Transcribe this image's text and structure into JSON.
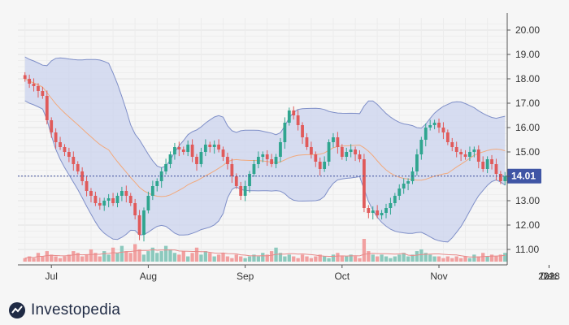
{
  "brand": {
    "name": "Investopedia"
  },
  "colors": {
    "up": "#2fa58f",
    "down": "#e05a5a",
    "band_fill": "#c9d2ee",
    "band_line": "#7f8fc8",
    "mid_line": "#f2a97c",
    "last_price_line": "#3e4f9c",
    "last_price_tag": "#3f55a5",
    "volume_up": "#8cc9bd",
    "volume_down": "#f1a0a0",
    "volume_ma": "#e88a8a"
  },
  "chart_data": {
    "type": "candlestick",
    "title": "",
    "indicators": [
      "bollinger-bands",
      "volume"
    ],
    "y_axis": {
      "position": "right",
      "range": [
        10.5,
        20.5
      ],
      "ticks": [
        "11.00",
        "12.00",
        "13.00",
        "14.00",
        "15.00",
        "16.00",
        "17.00",
        "18.00",
        "19.00",
        "20.00"
      ]
    },
    "x_axis": {
      "ticks": [
        {
          "label": "Jul",
          "index": 6
        },
        {
          "label": "Aug",
          "index": 28
        },
        {
          "label": "Sep",
          "index": 50
        },
        {
          "label": "Oct",
          "index": 72
        },
        {
          "label": "Nov",
          "index": 94
        },
        {
          "label": "Dec",
          "index": 116
        },
        {
          "label": "2018",
          "index": 138
        },
        {
          "label": "22",
          "index": 152
        }
      ]
    },
    "last_price": 14.01,
    "last_price_label": "14.01",
    "grid": true,
    "closes": [
      18.0,
      17.8,
      17.7,
      17.5,
      17.3,
      16.3,
      15.8,
      15.4,
      15.2,
      15.0,
      14.8,
      14.5,
      14.2,
      13.8,
      13.4,
      13.2,
      12.9,
      12.8,
      13.0,
      13.1,
      12.9,
      13.2,
      13.4,
      13.2,
      12.9,
      12.4,
      11.6,
      12.6,
      13.2,
      13.6,
      13.8,
      14.2,
      14.5,
      14.9,
      15.2,
      15.1,
      15.0,
      15.3,
      14.8,
      14.5,
      15.0,
      15.3,
      15.2,
      15.3,
      15.1,
      14.8,
      14.5,
      14.0,
      13.6,
      13.2,
      13.6,
      14.1,
      14.5,
      14.8,
      14.9,
      14.7,
      14.5,
      14.8,
      15.4,
      16.2,
      16.7,
      16.5,
      16.1,
      15.6,
      15.2,
      14.9,
      14.6,
      14.3,
      14.6,
      15.4,
      15.6,
      15.2,
      14.8,
      15.0,
      15.1,
      14.9,
      14.7,
      12.7,
      12.5,
      12.6,
      12.4,
      12.5,
      12.7,
      12.9,
      13.2,
      13.5,
      13.7,
      13.8,
      14.2,
      14.9,
      15.5,
      16.0,
      16.1,
      16.2,
      16.0,
      15.8,
      15.4,
      15.2,
      15.0,
      14.9,
      14.8,
      15.0,
      15.1,
      14.6,
      14.3,
      14.7,
      14.5,
      14.1,
      13.8,
      14.01
    ],
    "volume_scale": "relative (no volume axis printed)",
    "volumes": [
      0.2,
      0.3,
      0.2,
      0.5,
      0.3,
      0.6,
      0.4,
      0.3,
      0.2,
      0.3,
      0.4,
      0.6,
      0.5,
      0.3,
      0.4,
      0.7,
      0.5,
      0.3,
      0.6,
      0.4,
      0.8,
      0.5,
      0.9,
      0.6,
      0.5,
      1.0,
      0.7,
      0.4,
      0.6,
      0.8,
      0.5,
      0.6,
      0.9,
      0.7,
      0.5,
      0.4,
      0.6,
      0.3,
      0.5,
      0.8,
      0.4,
      0.6,
      0.5,
      0.3,
      0.4,
      0.5,
      0.3,
      0.2,
      0.4,
      0.3,
      0.2,
      0.3,
      0.4,
      0.3,
      0.5,
      0.4,
      0.6,
      0.8,
      0.5,
      0.3,
      0.4,
      0.3,
      0.2,
      0.4,
      0.3,
      0.2,
      0.3,
      0.4,
      0.3,
      0.2,
      0.4,
      0.5,
      0.3,
      0.3,
      0.4,
      0.3,
      0.2,
      1.3,
      0.6,
      0.4,
      0.3,
      0.4,
      0.3,
      0.2,
      0.3,
      0.4,
      0.5,
      0.3,
      0.4,
      0.6,
      0.7,
      0.5,
      0.4,
      0.3,
      0.3,
      0.2,
      0.3,
      0.2,
      0.3,
      0.2,
      0.3,
      0.2,
      0.4,
      0.3,
      0.5,
      0.3,
      0.4,
      0.3,
      0.4,
      0.5
    ]
  }
}
